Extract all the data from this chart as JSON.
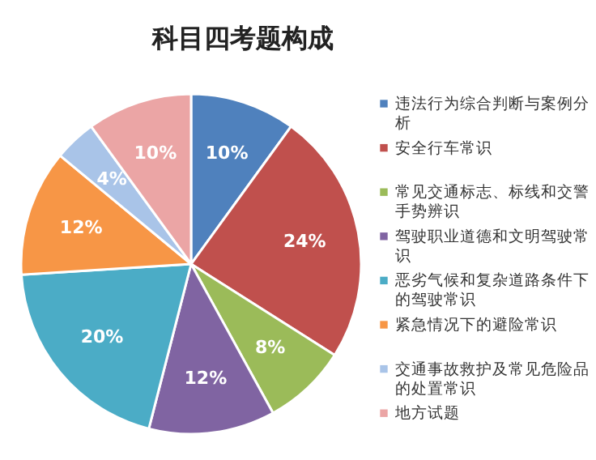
{
  "chart_data": {
    "type": "pie",
    "title": "科目四考题构成",
    "categories": [
      "违法行为综合判断与案例分析",
      "安全行车常识",
      "常见交通标志、标线和交警手势辨识",
      "驾驶职业道德和文明驾驶常识",
      "恶劣气候和复杂道路条件下的驾驶常识",
      "紧急情况下的避险常识",
      "交通事故救护及常见危险品的处置常识",
      "地方试题"
    ],
    "values": [
      10,
      24,
      8,
      12,
      20,
      12,
      4,
      10
    ],
    "value_labels": [
      "10%",
      "24%",
      "8%",
      "12%",
      "20%",
      "12%",
      "4%",
      "10%"
    ],
    "colors": [
      "#4f81bd",
      "#c0504d",
      "#9bbb59",
      "#8064a2",
      "#4bacc6",
      "#f79646",
      "#a9c4e8",
      "#eba5a5"
    ],
    "legend": "right"
  }
}
